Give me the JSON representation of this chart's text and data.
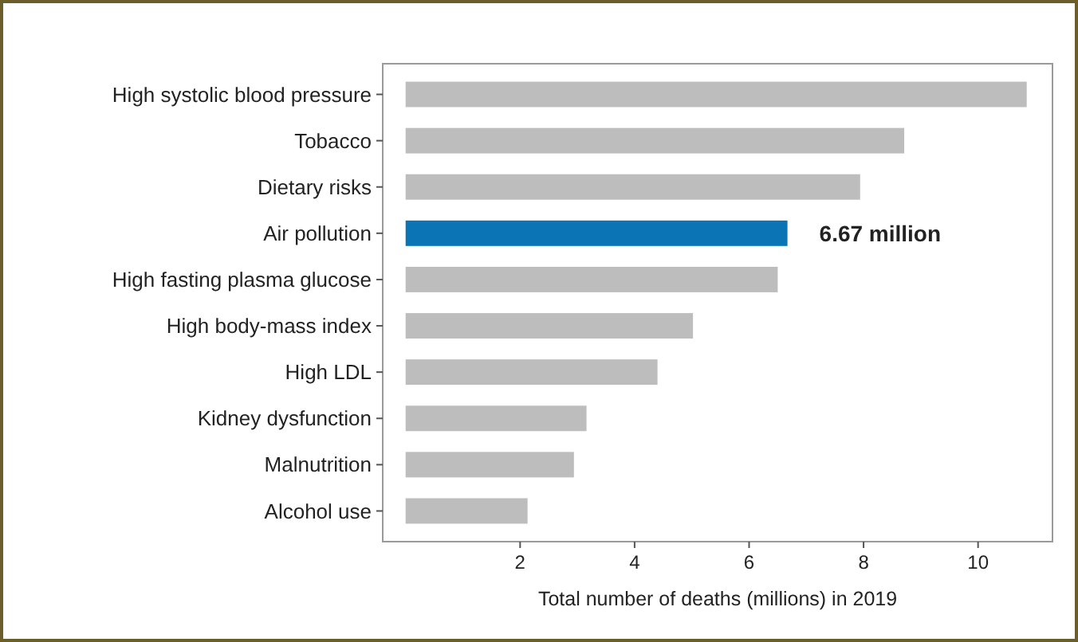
{
  "chart_data": {
    "type": "bar",
    "orientation": "horizontal",
    "xlabel": "Total number of deaths (millions) in 2019",
    "categories": [
      "High systolic blood pressure",
      "Tobacco",
      "Dietary risks",
      "Air pollution",
      "High fasting plasma glucose",
      "High body-mass index",
      "High LDL",
      "Kidney dysfunction",
      "Malnutrition",
      "Alcohol use"
    ],
    "values": [
      10.85,
      8.71,
      7.94,
      6.67,
      6.5,
      5.02,
      4.4,
      3.16,
      2.94,
      2.13
    ],
    "colors": [
      "#bdbdbd",
      "#bdbdbd",
      "#bdbdbd",
      "#0a74b4",
      "#bdbdbd",
      "#bdbdbd",
      "#bdbdbd",
      "#bdbdbd",
      "#bdbdbd",
      "#bdbdbd"
    ],
    "value_labels": [
      null,
      null,
      null,
      "6.67 million",
      null,
      null,
      null,
      null,
      null,
      null
    ],
    "xlim": [
      -0.4,
      11.3
    ],
    "xticks": [
      2,
      4,
      6,
      8,
      10
    ]
  }
}
